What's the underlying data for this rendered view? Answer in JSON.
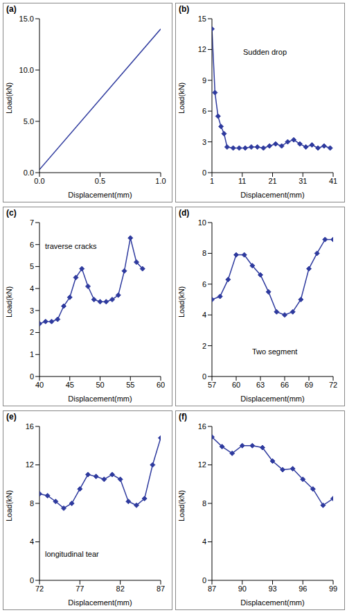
{
  "chart_data": [
    {
      "type": "line",
      "title": "(a)",
      "x_label": "Displacement(mm)",
      "y_label": "Load(kN)",
      "color": "#2e3a9e",
      "marker": "none",
      "grid": false,
      "x": [
        0,
        1
      ],
      "values": [
        0.3,
        14
      ],
      "xlim": [
        0,
        1
      ],
      "xticks": [
        {
          "value": 0,
          "label": "0.0"
        },
        {
          "value": 0.5,
          "label": "0.5"
        },
        {
          "value": 1,
          "label": "1.0"
        }
      ],
      "ylim": [
        0,
        15
      ],
      "yticks": [
        {
          "value": 0,
          "label": "0.0"
        },
        {
          "value": 5,
          "label": "5.0"
        },
        {
          "value": 10,
          "label": "10.0"
        },
        {
          "value": 15,
          "label": "15.0"
        }
      ]
    },
    {
      "type": "line",
      "title": "(b)",
      "x_label": "Displacement(mm)",
      "y_label": "Load(kN)",
      "color": "#2e3a9e",
      "marker": "diamond",
      "grid": false,
      "annotation": "Sudden drop",
      "x": [
        1,
        2,
        3,
        4,
        5,
        6,
        8,
        10,
        12,
        14,
        16,
        18,
        20,
        22,
        24,
        26,
        28,
        30,
        32,
        34,
        36,
        38,
        40
      ],
      "values": [
        14,
        7.8,
        5.5,
        4.5,
        3.8,
        2.5,
        2.4,
        2.4,
        2.4,
        2.5,
        2.5,
        2.4,
        2.6,
        2.8,
        2.6,
        3.0,
        3.2,
        2.8,
        2.5,
        2.7,
        2.4,
        2.6,
        2.4
      ],
      "xlim": [
        1,
        41
      ],
      "xticks": [
        1,
        11,
        21,
        31,
        41
      ],
      "ylim": [
        0,
        15
      ],
      "yticks": [
        0,
        3,
        6,
        9,
        12,
        15
      ]
    },
    {
      "type": "line",
      "title": "(c)",
      "x_label": "Displacement(mm)",
      "y_label": "Load(kN)",
      "color": "#2e3a9e",
      "marker": "diamond",
      "grid": false,
      "annotation": "traverse cracks",
      "x": [
        40,
        41,
        42,
        43,
        44,
        45,
        46,
        47,
        48,
        49,
        50,
        51,
        52,
        53,
        54,
        55,
        56,
        57
      ],
      "values": [
        2.4,
        2.5,
        2.5,
        2.6,
        3.2,
        3.6,
        4.5,
        4.9,
        4.1,
        3.5,
        3.4,
        3.4,
        3.5,
        3.7,
        4.8,
        6.3,
        5.2,
        4.9
      ],
      "xlim": [
        40,
        60
      ],
      "xticks": [
        40,
        45,
        50,
        55,
        60
      ],
      "ylim": [
        0,
        7
      ],
      "yticks": [
        0,
        1,
        2,
        3,
        4,
        5,
        6,
        7
      ]
    },
    {
      "type": "line",
      "title": "(d)",
      "x_label": "Displacement(mm)",
      "y_label": "Load(kN)",
      "color": "#2e3a9e",
      "marker": "diamond",
      "grid": false,
      "annotation": "Two segment",
      "x": [
        57,
        58,
        59,
        60,
        61,
        62,
        63,
        64,
        65,
        66,
        67,
        68,
        69,
        70,
        71,
        72
      ],
      "values": [
        5,
        5.2,
        6.3,
        7.9,
        7.9,
        7.2,
        6.6,
        5.5,
        4.2,
        4,
        4.2,
        5,
        7,
        8,
        8.9,
        8.9
      ],
      "xlim": [
        57,
        72
      ],
      "xticks": [
        57,
        60,
        63,
        66,
        69,
        72
      ],
      "ylim": [
        0,
        10
      ],
      "yticks": [
        0,
        2,
        4,
        6,
        8,
        10
      ]
    },
    {
      "type": "line",
      "title": "(e)",
      "x_label": "Displacement(mm)",
      "y_label": "Load(kN)",
      "color": "#2e3a9e",
      "marker": "diamond",
      "grid": false,
      "annotation": "longitudinal tear",
      "x": [
        72,
        73,
        74,
        75,
        76,
        77,
        78,
        79,
        80,
        81,
        82,
        83,
        84,
        85,
        86,
        87
      ],
      "values": [
        9,
        8.8,
        8.2,
        7.5,
        8,
        9.5,
        11,
        10.8,
        10.5,
        11,
        10.5,
        8.2,
        7.8,
        8.5,
        12,
        14.8
      ],
      "xlim": [
        72,
        87
      ],
      "xticks": [
        72,
        77,
        82,
        87
      ],
      "ylim": [
        0,
        16
      ],
      "yticks": [
        0,
        4,
        8,
        12,
        16
      ]
    },
    {
      "type": "line",
      "title": "(f)",
      "x_label": "Displacement(mm)",
      "y_label": "Load(kN)",
      "color": "#2e3a9e",
      "marker": "diamond",
      "grid": false,
      "x": [
        87,
        88,
        89,
        90,
        91,
        92,
        93,
        94,
        95,
        96,
        97,
        98,
        99
      ],
      "values": [
        14.9,
        13.9,
        13.2,
        14,
        14,
        13.8,
        12.4,
        11.5,
        11.6,
        10.5,
        9.5,
        7.8,
        8.5
      ],
      "xlim": [
        87,
        99
      ],
      "xticks": [
        87,
        90,
        93,
        96,
        99
      ],
      "ylim": [
        0,
        16
      ],
      "yticks": [
        0,
        4,
        8,
        12,
        16
      ]
    }
  ]
}
